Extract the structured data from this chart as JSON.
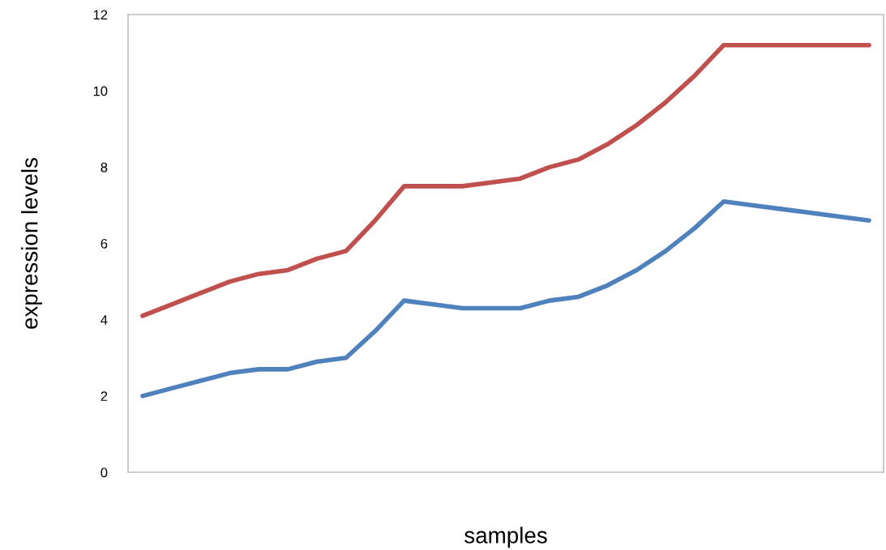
{
  "chart_data": {
    "type": "line",
    "xlabel": "samples",
    "ylabel": "expression levels",
    "categories": [
      null,
      null,
      null,
      null,
      null,
      null,
      null,
      null,
      null,
      null,
      null,
      null,
      null,
      null,
      null,
      null,
      null,
      null,
      null,
      null,
      null,
      null,
      null,
      null,
      null,
      null
    ],
    "series": [
      {
        "color": "#c0504d",
        "values": [
          4.1,
          4.4,
          4.7,
          5.0,
          5.2,
          5.3,
          5.6,
          5.8,
          6.6,
          7.5,
          7.5,
          7.5,
          7.6,
          7.7,
          8.0,
          8.2,
          8.6,
          9.1,
          9.7,
          10.4,
          11.2,
          11.2,
          11.2,
          11.2,
          11.2,
          11.2
        ]
      },
      {
        "color": "#4f81bd",
        "values": [
          2.0,
          2.2,
          2.4,
          2.6,
          2.7,
          2.7,
          2.9,
          3.0,
          3.7,
          4.5,
          4.4,
          4.3,
          4.3,
          4.3,
          4.5,
          4.6,
          4.9,
          5.3,
          5.8,
          6.4,
          7.1,
          7.0,
          6.9,
          6.8,
          6.7,
          6.6
        ]
      }
    ],
    "ylim": [
      0,
      12
    ],
    "yticks": [
      0,
      2,
      4,
      6,
      8,
      10,
      12
    ],
    "grid": false,
    "marker": "none",
    "line_style": "solid"
  }
}
